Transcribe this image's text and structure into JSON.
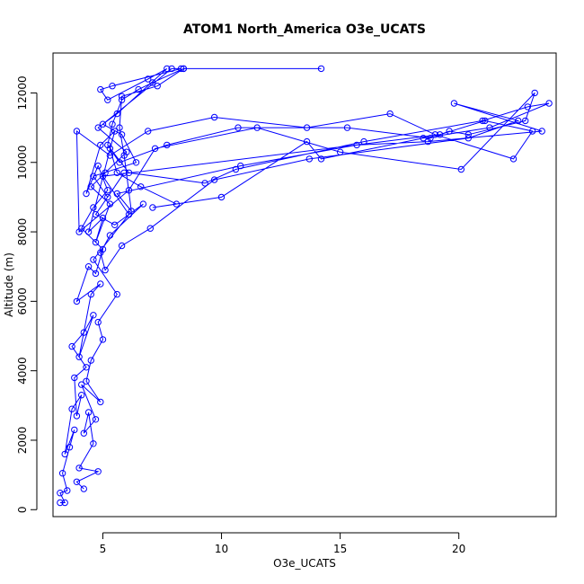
{
  "chart_data": {
    "type": "line",
    "title": "ATOM1 North_America O3e_UCATS",
    "xlabel": "O3e_UCATS",
    "ylabel": "Altitude (m)",
    "xlim": [
      2.9,
      24.1
    ],
    "ylim": [
      -200,
      13150
    ],
    "xticks": [
      5,
      10,
      15,
      20
    ],
    "yticks": [
      0,
      2000,
      4000,
      6000,
      8000,
      10000,
      12000
    ],
    "xtick_labels": [
      "5",
      "10",
      "15",
      "20"
    ],
    "ytick_labels": [
      "0",
      "2000",
      "4000",
      "6000",
      "8000",
      "10000",
      "12000"
    ],
    "grid": false,
    "marker": "open-circle",
    "series_color": "#0000ff",
    "series": [
      {
        "x": [
          3.2,
          3.4,
          3.2,
          3.5,
          3.3,
          3.6,
          3.8,
          3.4,
          3.7,
          4.1,
          3.9,
          3.8,
          4.3,
          3.7,
          4.2,
          4.6,
          4.0,
          4.5,
          4.9,
          3.9,
          4.4,
          4.7,
          5.0,
          4.1,
          4.6,
          5.2,
          4.8,
          4.3,
          4.9,
          5.5,
          4.4,
          5.0,
          4.7,
          5.3,
          4.5,
          5.1,
          6.0,
          4.8,
          5.6,
          7.7,
          6.9,
          5.2,
          4.9,
          5.4,
          8.3,
          7.9,
          5.0,
          5.8,
          6.4,
          4.6,
          5.2,
          5.9,
          4.7,
          5.5,
          6.7,
          5.3,
          4.9,
          5.1,
          5.8,
          7.0,
          9.7,
          13.7,
          20.4,
          22.5,
          19.8,
          23.5,
          18.7,
          15.7,
          10.8,
          5.6,
          6.2,
          5.9,
          5.7,
          5.8,
          7.3,
          8.4,
          14.2,
          8.4,
          7.1,
          6.5,
          5.8,
          5.4,
          5.2,
          6.1,
          9.3,
          10.6,
          16.0,
          21.0,
          22.9,
          23.8,
          21.3,
          18.5,
          14.2,
          13.6,
          10.0,
          7.1,
          8.1,
          6.6,
          5.6,
          5.3,
          5.7,
          7.7,
          10.7,
          15.3,
          18.8,
          19.6,
          20.4,
          22.8,
          23.2,
          20.1,
          15.0,
          11.5,
          7.2,
          6.1,
          4.0,
          3.9,
          5.3,
          6.9,
          9.7,
          13.6,
          17.1,
          19.0,
          22.3,
          23.1,
          21.1,
          19.2,
          5.0,
          6.1,
          4.6,
          5.6,
          4.8,
          5.0,
          4.5,
          4.3,
          4.9,
          4.1,
          4.7,
          4.2,
          4.4,
          4.6,
          4.0,
          4.8,
          3.9,
          4.2
        ],
        "y": [
          200,
          200,
          480,
          550,
          1050,
          1800,
          2300,
          1600,
          2900,
          3300,
          2700,
          3800,
          4100,
          4700,
          5100,
          5600,
          4400,
          6200,
          6500,
          6000,
          7000,
          6800,
          7500,
          8100,
          8700,
          9200,
          9900,
          9100,
          10500,
          10900,
          8000,
          8400,
          7700,
          8800,
          9300,
          9700,
          10300,
          11000,
          11400,
          12700,
          12400,
          11800,
          12100,
          12200,
          12700,
          12700,
          11100,
          10800,
          10000,
          9600,
          9000,
          9700,
          8500,
          8200,
          8800,
          7900,
          7400,
          6900,
          7600,
          8100,
          9500,
          10100,
          10700,
          11200,
          11700,
          10900,
          10600,
          10500,
          9900,
          9100,
          8600,
          10200,
          11000,
          11900,
          12200,
          12700,
          12700,
          12700,
          12300,
          12100,
          11800,
          11100,
          10500,
          9700,
          9400,
          9800,
          10600,
          11200,
          11600,
          11700,
          11000,
          10700,
          10100,
          10600,
          9000,
          8700,
          8800,
          9300,
          9700,
          10400,
          10000,
          10500,
          11000,
          11000,
          10700,
          10900,
          10800,
          11200,
          12000,
          9800,
          10300,
          11000,
          10400,
          9200,
          8000,
          10900,
          10200,
          10900,
          11300,
          11000,
          11400,
          10800,
          10100,
          10900,
          11200,
          10800,
          9600,
          8500,
          7200,
          6200,
          5400,
          4900,
          4300,
          3700,
          3100,
          3600,
          2600,
          2200,
          2800,
          1900,
          1200,
          1100,
          800,
          600
        ]
      }
    ]
  }
}
